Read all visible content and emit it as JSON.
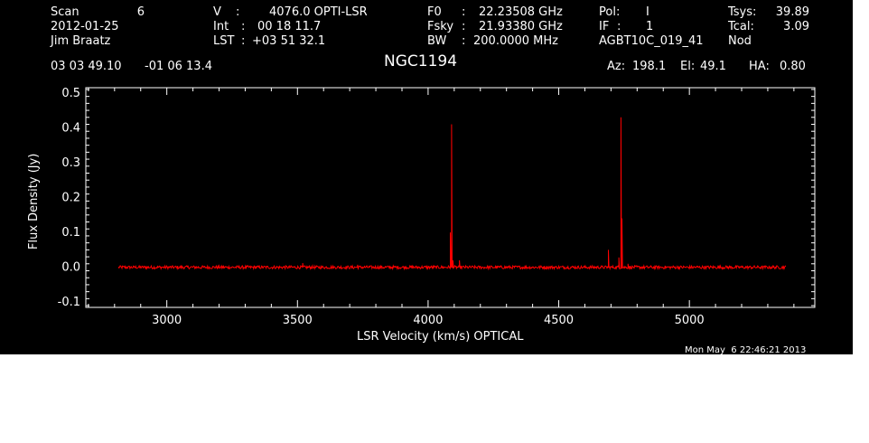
{
  "header": {
    "col1": {
      "scan_label": "Scan",
      "scan_value": "6",
      "date": "2012-01-25",
      "observer": "Jim Braatz"
    },
    "col2": {
      "v_label": "V",
      "v_value": "4076.0 OPTI-LSR",
      "int_label": "Int",
      "int_value": "00 18 11.7",
      "lst_label": "LST",
      "lst_value": "+03 51 32.1"
    },
    "col3": {
      "f0_label": "F0",
      "f0_value": "22.23508 GHz",
      "fsky_label": "Fsky",
      "fsky_value": "21.93380 GHz",
      "bw_label": "BW",
      "bw_value": "200.0000 MHz"
    },
    "col4": {
      "pol_label": "Pol:",
      "pol_value": "I",
      "if_label": "IF",
      "if_value": "1",
      "project": "AGBT10C_019_41"
    },
    "col5": {
      "tsys_label": "Tsys:",
      "tsys_value": "39.89",
      "tcal_label": "Tcal:",
      "tcal_value": "3.09",
      "mode": "Nod"
    },
    "ra": "03 03 49.10",
    "dec": "-01 06 13.4",
    "source": "NGC1194",
    "az_label": "Az:",
    "az_value": "198.1",
    "el_label": "El:",
    "el_value": "49.1",
    "ha_label": "HA:",
    "ha_value": "0.80"
  },
  "footer": {
    "timestamp": "Mon May  6 22:46:21 2013"
  },
  "chart_data": {
    "type": "line",
    "xlabel": "LSR Velocity (km/s) OPTICAL",
    "ylabel": "Flux Density (Jy)",
    "xlim": [
      2690,
      5480
    ],
    "ylim": [
      -0.115,
      0.515
    ],
    "x_ticks": [
      3000,
      3500,
      4000,
      4500,
      5000
    ],
    "y_ticks": [
      -0.1,
      0.0,
      0.1,
      0.2,
      0.3,
      0.4,
      0.5
    ],
    "y_tick_labels": [
      "-0.1",
      "0.0",
      "0.1",
      "0.2",
      "0.3",
      "0.4",
      "0.5"
    ],
    "line_color": "#ff0000",
    "frame_color": "#ffffff",
    "background": "#000000",
    "grid": false,
    "x_range": [
      2815,
      5370
    ],
    "noise_rms": 0.003,
    "peaks": [
      {
        "x": 3520,
        "y": 0.012
      },
      {
        "x": 3730,
        "y": 0.007
      },
      {
        "x": 4085,
        "y": 0.1
      },
      {
        "x": 4090,
        "y": 0.41
      },
      {
        "x": 4095,
        "y": 0.02
      },
      {
        "x": 4120,
        "y": 0.02
      },
      {
        "x": 4690,
        "y": 0.05
      },
      {
        "x": 4730,
        "y": 0.028
      },
      {
        "x": 4738,
        "y": 0.43
      },
      {
        "x": 4742,
        "y": 0.14
      },
      {
        "x": 4765,
        "y": 0.01
      },
      {
        "x": 5370,
        "y": 0.012
      }
    ]
  }
}
